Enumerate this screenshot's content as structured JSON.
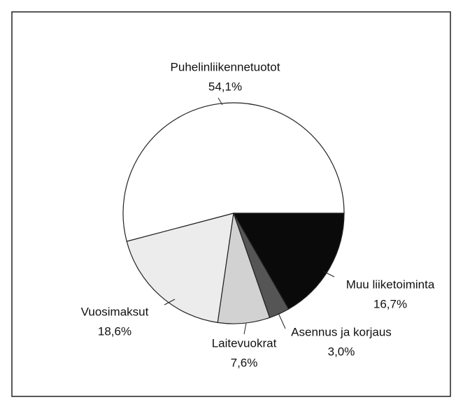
{
  "chart_data": {
    "type": "pie",
    "categories": [
      "Puhelinliikennetuotot",
      "Vuosimaksut",
      "Laitevuokrat",
      "Asennus ja korjaus",
      "Muu liiketoiminta"
    ],
    "values": [
      54.1,
      18.6,
      7.6,
      3.0,
      16.7
    ],
    "value_labels": [
      "54,1%",
      "18,6%",
      "7,6%",
      "3,0%",
      "16,7%"
    ],
    "colors": [
      "#ffffff",
      "#ececec",
      "#d2d2d2",
      "#555555",
      "#0a0a0a"
    ]
  }
}
